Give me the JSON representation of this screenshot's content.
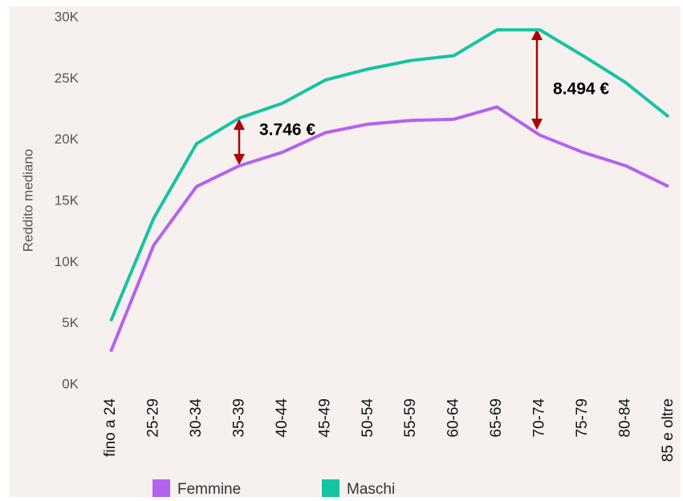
{
  "chart_data": {
    "type": "line",
    "y_label": "Reddito mediano",
    "categories": [
      "fino a 24",
      "25-29",
      "30-34",
      "35-39",
      "40-44",
      "45-49",
      "50-54",
      "55-59",
      "60-64",
      "65-69",
      "70-74",
      "75-79",
      "80-84",
      "85 e oltre"
    ],
    "series": [
      {
        "name": "Femmine",
        "color": "#b561f0",
        "values": [
          2700,
          11400,
          16200,
          17900,
          19000,
          20600,
          21300,
          21600,
          21700,
          22700,
          20400,
          19000,
          17900,
          16200
        ]
      },
      {
        "name": "Maschi",
        "color": "#14c4a0",
        "values": [
          5200,
          13600,
          19700,
          21800,
          23000,
          24900,
          25800,
          26500,
          26900,
          29000,
          29000,
          26900,
          24700,
          21900
        ]
      }
    ],
    "ylim": [
      0,
      30000
    ],
    "yticks": [
      {
        "value": 0,
        "label": "0K"
      },
      {
        "value": 5000,
        "label": "5K"
      },
      {
        "value": 10000,
        "label": "10K"
      },
      {
        "value": 15000,
        "label": "15K"
      },
      {
        "value": 20000,
        "label": "20K"
      },
      {
        "value": 25000,
        "label": "25K"
      },
      {
        "value": 30000,
        "label": "30K"
      }
    ],
    "annotations": [
      "3.746 €",
      "8.494 €"
    ],
    "legend": "bottom"
  }
}
